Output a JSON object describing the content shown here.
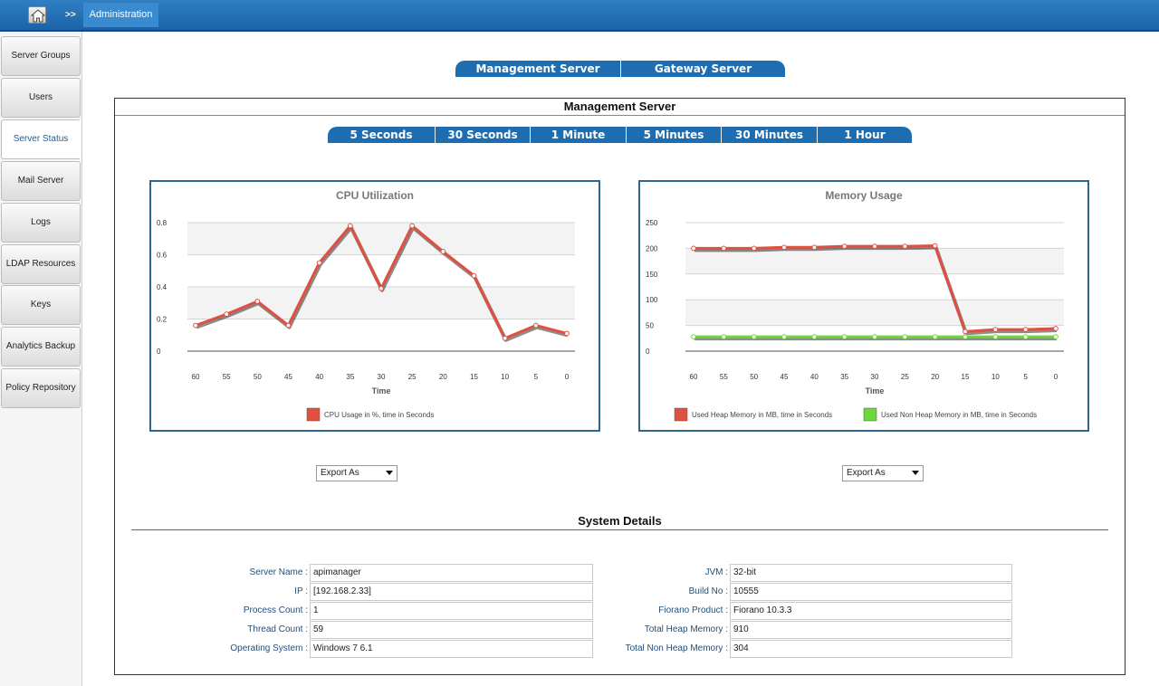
{
  "header": {
    "home_icon": "home-icon",
    "separator": ">>",
    "breadcrumb": "Administration"
  },
  "sidebar": {
    "items": [
      {
        "label": "Server Groups"
      },
      {
        "label": "Users"
      },
      {
        "label": "Server Status"
      },
      {
        "label": "Mail Server"
      },
      {
        "label": "Logs"
      },
      {
        "label": "LDAP Resources"
      },
      {
        "label": "Keys"
      },
      {
        "label": "Analytics Backup"
      },
      {
        "label": "Policy Repository"
      }
    ],
    "active": "Server Status"
  },
  "server_tabs": [
    "Management Server",
    "Gateway Server"
  ],
  "panel": {
    "title": "Management Server",
    "interval_tabs": [
      "5 Seconds",
      "30 Seconds",
      "1 Minute",
      "5 Minutes",
      "30 Minutes",
      "1 Hour"
    ]
  },
  "colors": {
    "accent": "#1d6db0",
    "chart_border": "#2d6690",
    "heap_series": "#e05040",
    "non_heap_series": "#6cd83a"
  },
  "chart_data": [
    {
      "type": "line",
      "title": "CPU Utilization",
      "xlabel": "Time",
      "ylabel": "",
      "x": [
        60,
        55,
        50,
        45,
        40,
        35,
        30,
        25,
        20,
        15,
        10,
        5,
        0
      ],
      "ylim": [
        0,
        0.8
      ],
      "yticks": [
        "0",
        "0.2",
        "0.4",
        "0.6",
        "0.8"
      ],
      "grid": true,
      "legend_position": "bottom",
      "series": [
        {
          "name": "CPU Usage in %, time in Seconds",
          "color": "#e05040",
          "values": [
            0.16,
            0.23,
            0.31,
            0.16,
            0.55,
            0.78,
            0.39,
            0.78,
            0.62,
            0.47,
            0.08,
            0.16,
            0.11
          ]
        }
      ]
    },
    {
      "type": "line",
      "title": "Memory Usage",
      "xlabel": "Time",
      "ylabel": "",
      "x": [
        60,
        55,
        50,
        45,
        40,
        35,
        30,
        25,
        20,
        15,
        10,
        5,
        0
      ],
      "ylim": [
        0,
        250
      ],
      "yticks": [
        "0",
        "50",
        "100",
        "150",
        "200",
        "250"
      ],
      "grid": true,
      "legend_position": "bottom",
      "series": [
        {
          "name": "Used Heap Memory in MB, time in Seconds",
          "color": "#e05040",
          "values": [
            200,
            200,
            200,
            202,
            202,
            204,
            204,
            204,
            205,
            38,
            42,
            42,
            44
          ]
        },
        {
          "name": "Used Non Heap Memory in MB, time in Seconds",
          "color": "#6cd83a",
          "values": [
            28,
            28,
            28,
            28,
            28,
            28,
            28,
            28,
            28,
            28,
            28,
            28,
            28
          ]
        }
      ]
    }
  ],
  "export": {
    "label": "Export As"
  },
  "system_details": {
    "title": "System Details",
    "left": [
      {
        "label": "Server Name :",
        "value": "apimanager"
      },
      {
        "label": "IP :",
        "value": "[192.168.2.33]"
      },
      {
        "label": "Process Count :",
        "value": "1"
      },
      {
        "label": "Thread Count :",
        "value": "59"
      },
      {
        "label": "Operating System :",
        "value": "Windows 7 6.1"
      }
    ],
    "right": [
      {
        "label": "JVM :",
        "value": "32-bit"
      },
      {
        "label": "Build No :",
        "value": "10555"
      },
      {
        "label": "Fiorano Product :",
        "value": "Fiorano 10.3.3"
      },
      {
        "label": "Total Heap Memory :",
        "value": "910"
      },
      {
        "label": "Total Non Heap Memory :",
        "value": "304"
      }
    ]
  }
}
